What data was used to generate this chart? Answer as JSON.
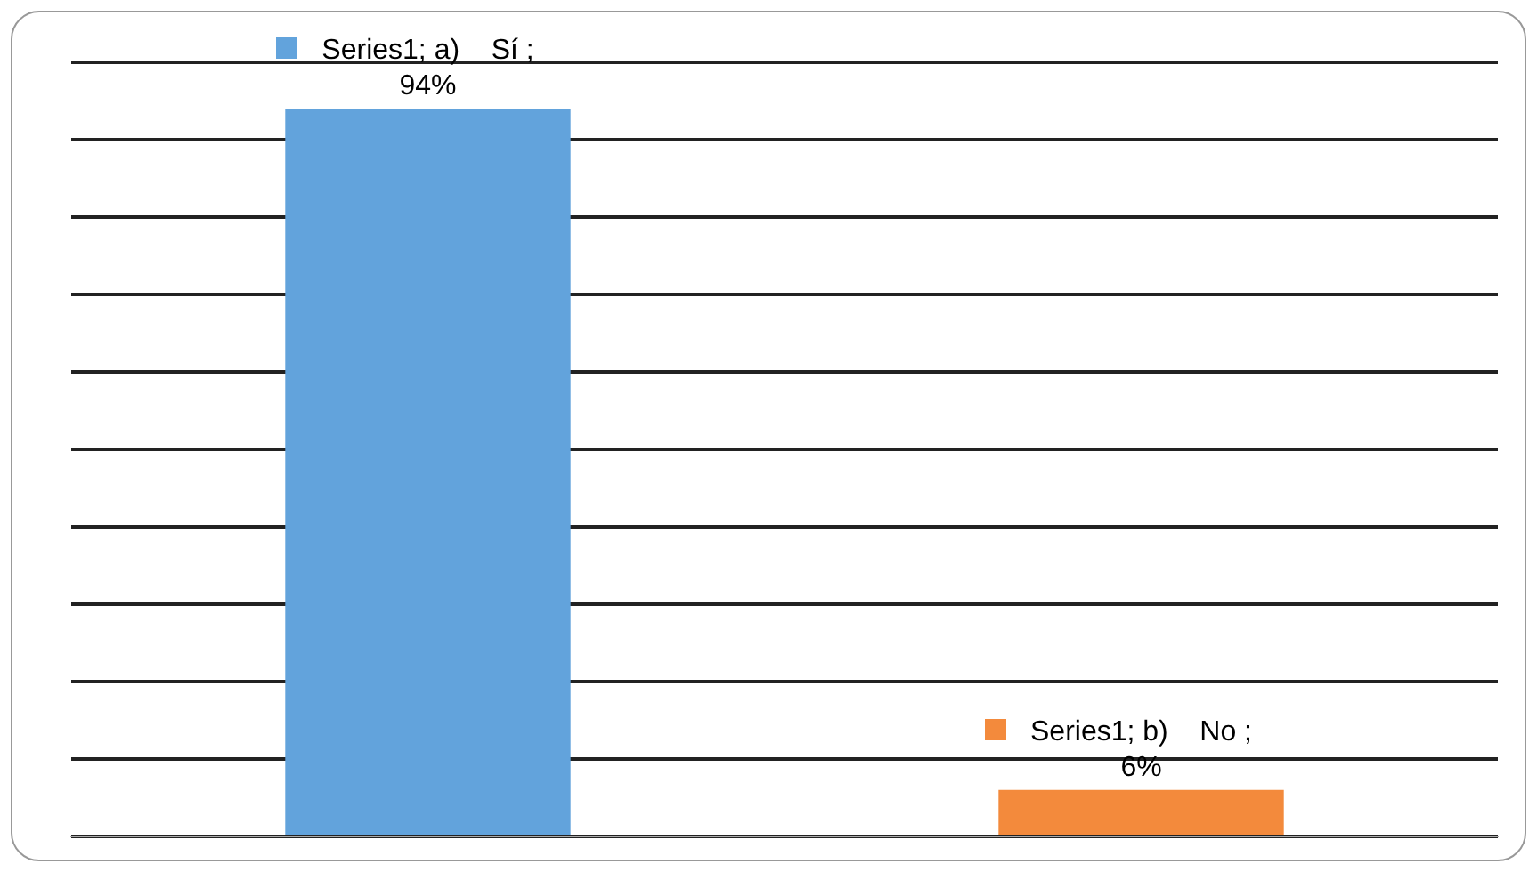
{
  "chart_data": {
    "type": "bar",
    "categories": [
      null,
      null
    ],
    "values": [
      94,
      6
    ],
    "colors": [
      "#62a3dc",
      "#f38a3c"
    ],
    "value_labels": [
      "Series1; a)    Sí ; 94%",
      "Series1; b)    No ; 6%"
    ],
    "ylim": [
      0,
      100
    ],
    "yticks": [
      {
        "value": 0,
        "label": null
      },
      {
        "value": 10,
        "label": null
      },
      {
        "value": 20,
        "label": null
      },
      {
        "value": 30,
        "label": null
      },
      {
        "value": 40,
        "label": null
      },
      {
        "value": 50,
        "label": null
      },
      {
        "value": 60,
        "label": null
      },
      {
        "value": 70,
        "label": null
      },
      {
        "value": 80,
        "label": null
      },
      {
        "value": 90,
        "label": null
      },
      {
        "value": 100,
        "label": null
      }
    ],
    "grid": "y",
    "legend": false,
    "tick_labels": false
  }
}
